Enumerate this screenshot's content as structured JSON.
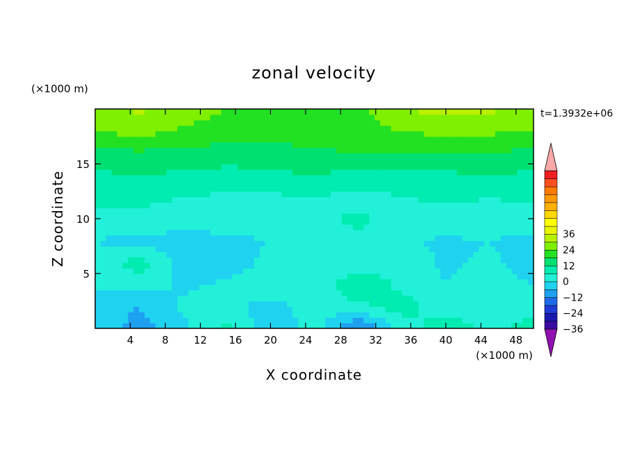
{
  "chart_data": {
    "type": "heatmap",
    "title": "zonal velocity",
    "xlabel": "X coordinate",
    "ylabel": "Z coordinate",
    "x_unit": "(×1000 m)",
    "y_unit": "(×1000 m)",
    "time_label": "t=1.3932e+06",
    "xlim": [
      0,
      50
    ],
    "ylim": [
      0,
      20
    ],
    "x_ticks": [
      4,
      8,
      12,
      16,
      20,
      24,
      28,
      32,
      36,
      40,
      44,
      48
    ],
    "y_ticks": [
      5,
      10,
      15
    ],
    "colorbar": {
      "tick_labels": [
        "36",
        "24",
        "12",
        "0",
        "−12",
        "−24",
        "−36"
      ],
      "tick_values": [
        36,
        24,
        12,
        0,
        -12,
        -24,
        -36
      ],
      "level_min": -42,
      "level_step": 6,
      "colors": [
        "#6a1f9a",
        "#3a0ca0",
        "#1a1ab0",
        "#1f3cd6",
        "#1e6ae8",
        "#1ea0f0",
        "#1fd2f0",
        "#22f0d8",
        "#00ecb0",
        "#00e070",
        "#22e022",
        "#7ef000",
        "#b8f000",
        "#e8f400",
        "#ffff00",
        "#ffd800",
        "#ffb000",
        "#ff9a00",
        "#ff7a00",
        "#ff5020",
        "#f02020",
        "#f8a8a8"
      ],
      "upper_arrow_color": "#f8a8a8",
      "lower_arrow_color": "#9010b0"
    },
    "field": {
      "description": "approximate zonal velocity sampled on a coarse grid, rows from top (z high) to bottom (z low), in m/s",
      "x": [
        0,
        5,
        10,
        15,
        20,
        25,
        30,
        35,
        40,
        45,
        50
      ],
      "z": [
        20,
        18,
        16,
        14,
        12,
        10,
        8,
        6,
        4,
        2,
        0
      ],
      "values": [
        [
          22,
          25,
          21,
          18,
          17,
          18,
          17,
          24,
          26,
          25,
          22
        ],
        [
          18,
          20,
          17,
          16,
          14,
          16,
          15,
          18,
          20,
          19,
          18
        ],
        [
          10,
          11,
          10,
          9,
          9,
          11,
          12,
          12,
          11,
          12,
          10
        ],
        [
          5,
          6,
          5,
          4,
          5,
          6,
          4,
          4,
          5,
          6,
          5
        ],
        [
          2,
          1,
          0,
          -1,
          -1,
          0,
          -2,
          0,
          1,
          0,
          1
        ],
        [
          -2,
          -1,
          -2,
          -2,
          -1,
          -1,
          1,
          -3,
          -2,
          -2,
          -2
        ],
        [
          -6,
          -8,
          -9,
          -8,
          -6,
          -3,
          -1,
          -5,
          -7,
          -6,
          -8
        ],
        [
          -5,
          3,
          -9,
          -10,
          -4,
          -6,
          -4,
          -3,
          -7,
          -5,
          -9
        ],
        [
          -4,
          -3,
          -7,
          -5,
          -1,
          -5,
          6,
          -2,
          -6,
          -3,
          -6
        ],
        [
          -10,
          -12,
          -5,
          -4,
          -9,
          -3,
          -2,
          3,
          -4,
          -6,
          -3
        ],
        [
          -6,
          -15,
          -8,
          2,
          -11,
          -3,
          -20,
          -4,
          5,
          -2,
          4
        ]
      ]
    }
  }
}
